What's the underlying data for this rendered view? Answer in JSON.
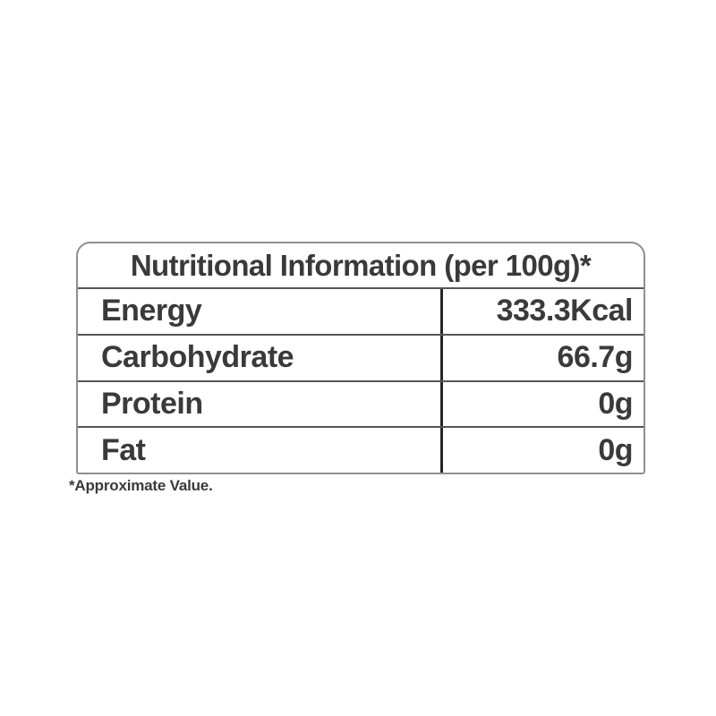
{
  "label": {
    "title": "Nutritional Information (per 100g)*",
    "rows": [
      {
        "name": "Energy",
        "value": "333.3Kcal"
      },
      {
        "name": "Carbohydrate",
        "value": "66.7g"
      },
      {
        "name": "Protein",
        "value": "0g"
      },
      {
        "name": "Fat",
        "value": "0g"
      }
    ],
    "footnote": "*Approximate Value.",
    "colors": {
      "text": "#3a3a3a",
      "outer_border": "#8f8f8f",
      "row_line": "#555555",
      "divider": "#262626",
      "background": "#ffffff"
    }
  }
}
